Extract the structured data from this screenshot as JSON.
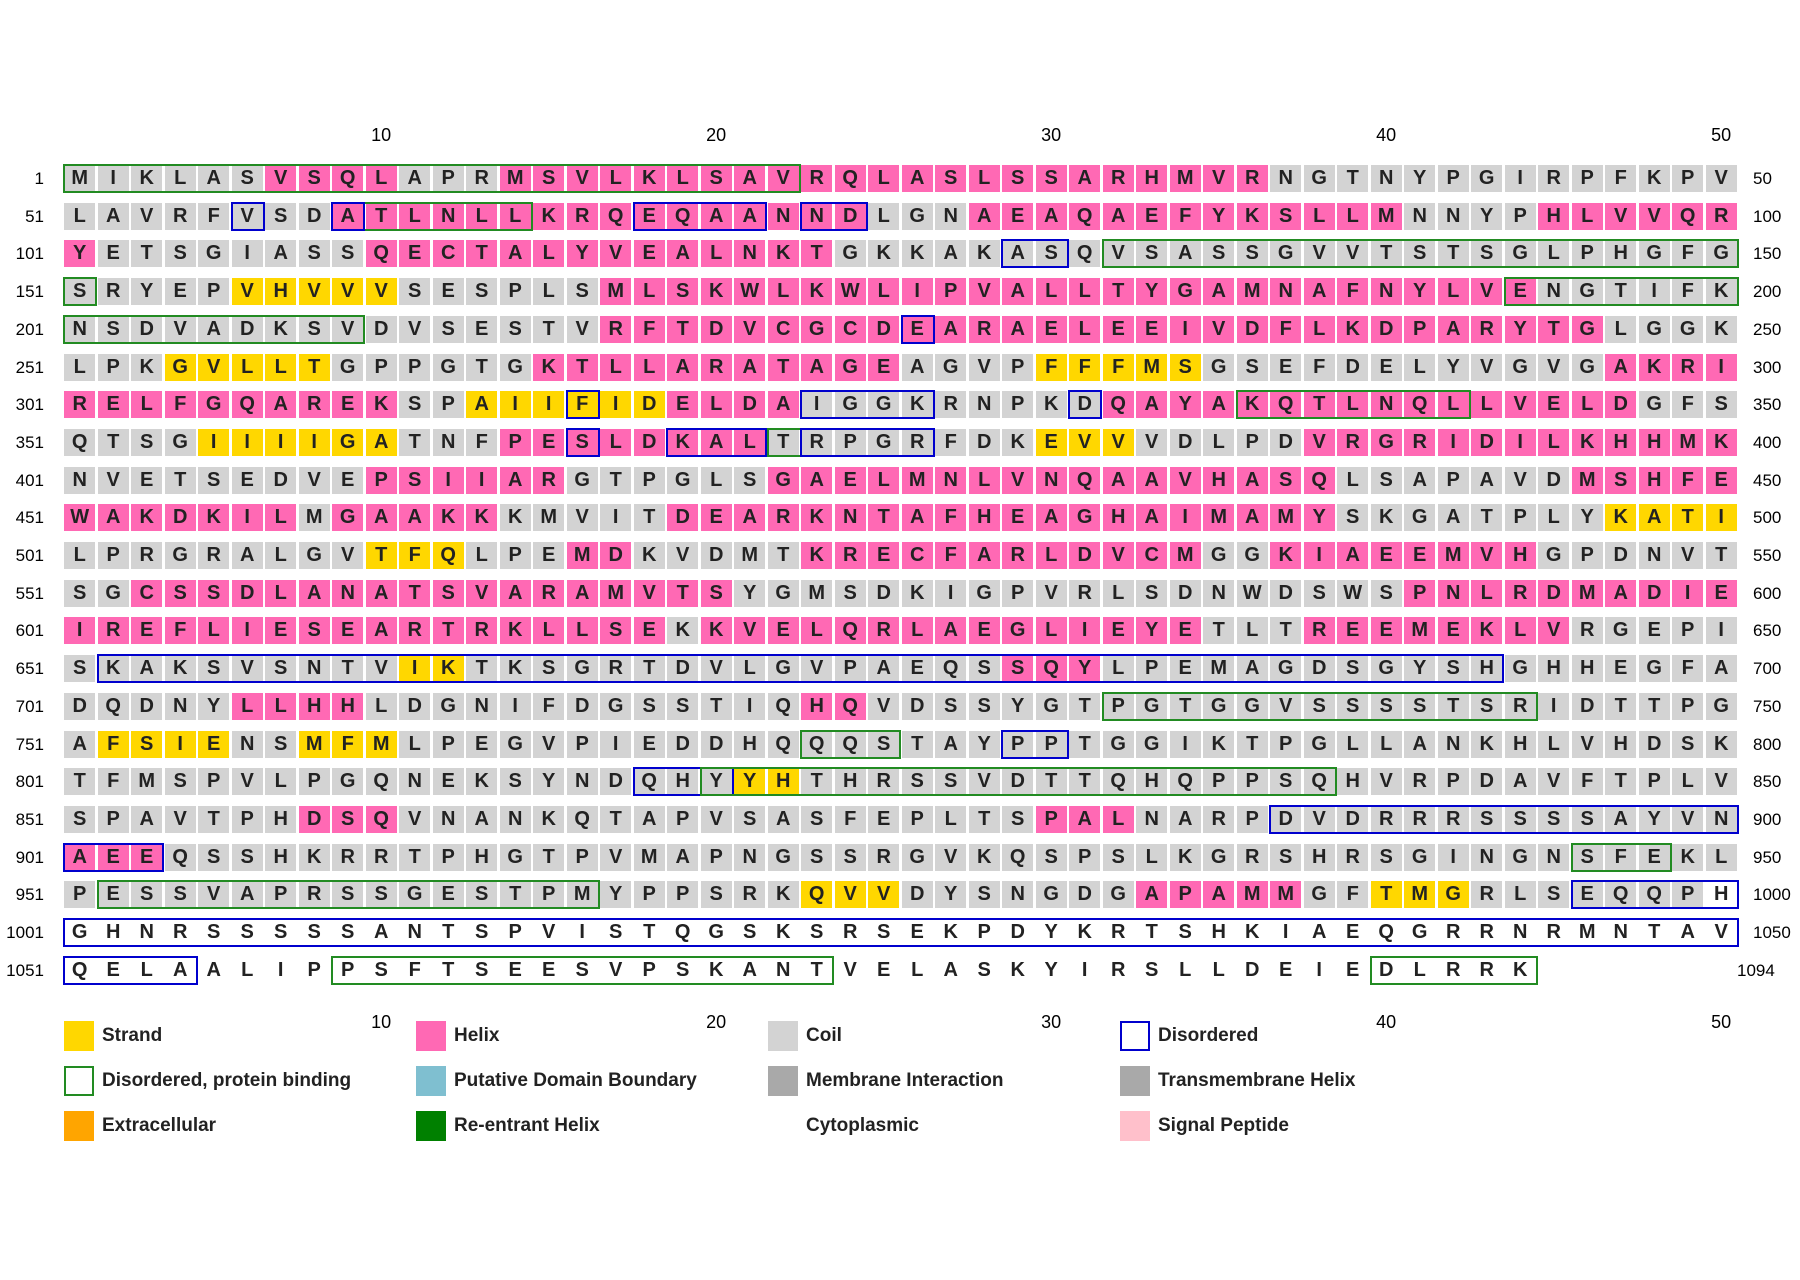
{
  "colors": {
    "strand": "#FFD700",
    "helix": "#FF69B4",
    "coil": "#D3D3D3",
    "disordered": "#0000CD",
    "disordered_binding": "#228B22",
    "domain_boundary": "#7FBFD0",
    "membrane_interaction": "#A9A9A9",
    "transmembrane_helix": "#A9A9A9",
    "extracellular": "#FFA500",
    "reentrant_helix": "#008000",
    "signal_peptide": "#FFC0CB"
  },
  "axis_ticks": [
    "10",
    "20",
    "30",
    "40",
    "50"
  ],
  "rows": [
    {
      "start": "1",
      "end": "50",
      "seq": "MIKLASVSQLAPRMSVLKLSAVRQLASLSSARHMVRNGTNYPGIRPFKPV",
      "ss": "CCCCCCHHHHCCCHHHHHHHHHHHHHHHHHHHHHHHCCCCCCCCCCCCCC"
    },
    {
      "start": "51",
      "end": "100",
      "seq": "LAVRFVSDATLNLLKRQEQAANNDLGNAEAQAEFYKSLLMNNYPHLVVQR",
      "ss": "CCCCCCCCHHHHHHHHHHHHHHHHCCCHHHHHHHHHHHHHCCCCHHHHHH"
    },
    {
      "start": "101",
      "end": "150",
      "seq": "YETSGIASSQECTALYVEALNKTGKKAKASQVSASSGVVTSTSGLPHGFG",
      "ss": "HCCCCCCCCHHHHHHHHHHHHHHCCCCCCCCCCCCCCCCCCCCCCCCCCC"
    },
    {
      "start": "151",
      "end": "200",
      "seq": "SRYEPVHVVVSESPLSMLSKWLKWLIPVALLTYGAMNAFNYLVENGTIFK",
      "ss": "CCCCCEEEEECCCCCCHHHHHHHHHHHHHHHHHHHHHHHHHHHHCCCCCC"
    },
    {
      "start": "201",
      "end": "250",
      "seq": "NSDVADKSVDVSESTVRFTDVCGCDEARAELEEIVDFLKDPARYTGLGGK",
      "ss": "CCCCCCCCCCCCCCCCHHHHHHHHHHHHHHHHHHHHHHHHHHHHHHCCCC"
    },
    {
      "start": "251",
      "end": "300",
      "seq": "LPKGVLLTGPPGTGKTLLARATAGEAGVPFFFMSGSEFDELYVGVGAKRI",
      "ss": "CCCEEEEECCCCCCHHHHHHHHHHHCCCCEEEEECCCCCCCCCCCCHHHH"
    },
    {
      "start": "301",
      "end": "350",
      "seq": "RELFGQAREKSPAIIFIDELDAIGGKRNPKDQAYAKQTLNQLLVELDGFS",
      "ss": "HHHHHHHHHHCCEEEEEEHHHHCCCCCCCCCHHHHHHHHHHHHHHHHCCC"
    },
    {
      "start": "351",
      "end": "400",
      "seq": "QTSGIIIIGATNFPESLDKALTRPGRFDKEVVVDLPDVRGRIDILKHHMK",
      "ss": "CCCCEEEEEECCCHHHHHHHHCCCCCCCCEEECCCCCHHHHHHHHHHHHH"
    },
    {
      "start": "401",
      "end": "450",
      "seq": "NVETSEDVEPSIIARGTPGLSGAELMNLVNQAAVHASQLSAPAVDMSHFE",
      "ss": "CCCCCCCCCHHHHHHCCCCCCHHHHHHHHHHHHHHHHHCCCCCCCHHHHH"
    },
    {
      "start": "451",
      "end": "500",
      "seq": "WAKDKILMGAAKKKMVITDEARKNTAFHEAGHAIMAMYSKGATPLYKATI",
      "ss": "HHHHHHHCHHHHHCCCCCHHHHHHHHHHHHHHHHHHHHCCCCCCCCEEEE"
    },
    {
      "start": "501",
      "end": "550",
      "seq": "LPRGRALGVTFQLPEMDKVDMTKRECFARLDVCMGGKIAEEMVHGPDNVT",
      "ss": "CCCCCCCCCEEECCCHHCCCCCHHHHHHHHHHHHCCHHHHHHHHCCCCCC"
    },
    {
      "start": "551",
      "end": "600",
      "seq": "SGCSSDLANATSVARAMVTSYGMSDKIGPVRLSDNWDSWSPNLRDMADIE",
      "ss": "CCHHHHHHHHHHHHHHHHHHCCCCCCCCCCCCCCCCCCCCHHHHHHHHHH"
    },
    {
      "start": "601",
      "end": "650",
      "seq": "IREFLIESEARTRKLLSEKKVELQRLAEGLIEYETLTREEMEKLVRGEPI",
      "ss": "HHHHHHHHHHHHHHHHHHCHHHHHHHHHHHHHHHCCCHHHHHHHHCCCCC"
    },
    {
      "start": "651",
      "end": "700",
      "seq": "SKAKSVSNTVIKTKSGRTDVLGVPAEQSSQYLPEMAGDSGYSHGHHEGFA",
      "ss": "CCCCCCCCCCEECCCCCCCCCCCCCCCCHHHCCCCCCCCCCCCCCCCCCC"
    },
    {
      "start": "701",
      "end": "750",
      "seq": "DQDNYLLHHLDGNIFDGSSTIQHQVDSSYGTPGTGGVSSSSTSRIDTTPG",
      "ss": "CCCCCHHHHCCCCCCCCCCCCCHHCCCCCCCCCCCCCCCCCCCCCCCCCC"
    },
    {
      "start": "751",
      "end": "800",
      "seq": "AFSIENSMFMLPEGVPIEDDHQQQSTAYPPTGGIKTPGLLANKHLVHDSK",
      "ss": "CEEEECCEEECCCCCCCCCCCCCCCCCCCCCCCCCCCCCCCCCCCCCCCC"
    },
    {
      "start": "801",
      "end": "850",
      "seq": "TFMSPVLPGQNEKSYNDQHYYHTHRSSVDTTQHQPPSQHVRPDAVFTPLV",
      "ss": "CCCCCCCCCCCCCCCCCCCCEECCCCCCCCCCCCCCCCCCCCCCCCCCCC"
    },
    {
      "start": "851",
      "end": "900",
      "seq": "SPAVTPHDSQVNANKQTAPVSASFEPLTSPALNARPDVDRRRSSSSAYVN",
      "ss": "CCCCCCCHHHCCCCCCCCCCCCCCCCCCCHHHCCCCCCCCCCCCCCCCCC"
    },
    {
      "start": "901",
      "end": "950",
      "seq": "AEEQSSHKRRTPHGTPVMAPNGSSRGVKQSPSLKGRSHRSGINGNSFEKL",
      "ss": "HHHCCCCCCCCCCCCCCCCCCCCCCCCCCCCCCCCCCCCCCCCCCCCCCC"
    },
    {
      "start": "951",
      "end": "1000",
      "seq": "PESSVAPRSSGESTPMYPPSRKQVVDYSNGDGAPAMMGFTMGRLSEQQPH",
      "ss": "CCCCCCCCCCCCCCCCCCCCCCEEECCCCCCCHHHHHCCEEECCCCCCCN"
    },
    {
      "start": "1001",
      "end": "1050",
      "seq": "GHNRSSSSSANTSPVISTQGSKSRSEKPDYKRTSHKIAEQGRRNRMNTAV",
      "ss": "NNNNNNNNNNNNNNNNNNNNNNNNNNNNNNNNNNNNNNNNNNNNNNNNNN"
    },
    {
      "start": "1051",
      "end": "1094",
      "seq": "QELAALIPPSFTSEESVPSKANTVELASKYIRSLLDEIEDLRRK",
      "ss": "NNNNNNNNNNNNNNNNNNNNNNNNNNNNNNNNNNNNNNNNNNNN"
    }
  ],
  "boxes": [
    {
      "type": "B",
      "row": 0,
      "from": 0,
      "to": 22
    },
    {
      "type": "D",
      "row": 1,
      "from": 5,
      "to": 6
    },
    {
      "type": "B",
      "row": 1,
      "from": 8,
      "to": 14
    },
    {
      "type": "D",
      "row": 1,
      "from": 8,
      "to": 9
    },
    {
      "type": "D",
      "row": 1,
      "from": 17,
      "to": 21
    },
    {
      "type": "D",
      "row": 1,
      "from": 22,
      "to": 24
    },
    {
      "type": "D",
      "row": 2,
      "from": 28,
      "to": 30
    },
    {
      "type": "B",
      "row": 2,
      "from": 31,
      "to": 50
    },
    {
      "type": "B",
      "row": 3,
      "from": 0,
      "to": 1
    },
    {
      "type": "B",
      "row": 3,
      "from": 43,
      "to": 50
    },
    {
      "type": "B",
      "row": 4,
      "from": 0,
      "to": 9
    },
    {
      "type": "D",
      "row": 4,
      "from": 25,
      "to": 26
    },
    {
      "type": "D",
      "row": 6,
      "from": 15,
      "to": 16
    },
    {
      "type": "D",
      "row": 6,
      "from": 22,
      "to": 26
    },
    {
      "type": "D",
      "row": 6,
      "from": 30,
      "to": 31
    },
    {
      "type": "B",
      "row": 6,
      "from": 35,
      "to": 42
    },
    {
      "type": "D",
      "row": 7,
      "from": 15,
      "to": 16
    },
    {
      "type": "D",
      "row": 7,
      "from": 18,
      "to": 21
    },
    {
      "type": "B",
      "row": 7,
      "from": 21,
      "to": 26
    },
    {
      "type": "D",
      "row": 7,
      "from": 22,
      "to": 26
    },
    {
      "type": "D",
      "row": 13,
      "from": 1,
      "to": 43
    },
    {
      "type": "B",
      "row": 14,
      "from": 31,
      "to": 44
    },
    {
      "type": "B",
      "row": 15,
      "from": 22,
      "to": 25
    },
    {
      "type": "D",
      "row": 15,
      "from": 28,
      "to": 30
    },
    {
      "type": "D",
      "row": 16,
      "from": 17,
      "to": 20
    },
    {
      "type": "B",
      "row": 16,
      "from": 19,
      "to": 38
    },
    {
      "type": "D",
      "row": 17,
      "from": 36,
      "to": 50
    },
    {
      "type": "D",
      "row": 18,
      "from": 0,
      "to": 3
    },
    {
      "type": "B",
      "row": 18,
      "from": 45,
      "to": 48
    },
    {
      "type": "B",
      "row": 19,
      "from": 1,
      "to": 16
    },
    {
      "type": "D",
      "row": 19,
      "from": 45,
      "to": 50
    },
    {
      "type": "D",
      "row": 20,
      "from": 0,
      "to": 50
    },
    {
      "type": "D",
      "row": 21,
      "from": 0,
      "to": 4
    },
    {
      "type": "B",
      "row": 21,
      "from": 8,
      "to": 23
    },
    {
      "type": "B",
      "row": 21,
      "from": 39,
      "to": 44
    }
  ],
  "legend": [
    {
      "label": "Strand",
      "swatch": "#FFD700",
      "outline": ""
    },
    {
      "label": "Helix",
      "swatch": "#FF69B4",
      "outline": ""
    },
    {
      "label": "Coil",
      "swatch": "#D3D3D3",
      "outline": ""
    },
    {
      "label": "Disordered",
      "swatch": "#FFFFFF",
      "outline": "#0000CD"
    },
    {
      "label": "Disordered, protein binding",
      "swatch": "#FFFFFF",
      "outline": "#228B22"
    },
    {
      "label": "Putative Domain Boundary",
      "swatch": "#7FBFD0",
      "outline": ""
    },
    {
      "label": "Membrane Interaction",
      "swatch": "#A9A9A9",
      "outline": ""
    },
    {
      "label": "Transmembrane Helix",
      "swatch": "#A9A9A9",
      "outline": ""
    },
    {
      "label": "Extracellular",
      "swatch": "#FFA500",
      "outline": ""
    },
    {
      "label": "Re-entrant Helix",
      "swatch": "#008000",
      "outline": ""
    },
    {
      "label": "Cytoplasmic",
      "swatch": "",
      "outline": ""
    },
    {
      "label": "Signal Peptide",
      "swatch": "#FFC0CB",
      "outline": ""
    }
  ]
}
